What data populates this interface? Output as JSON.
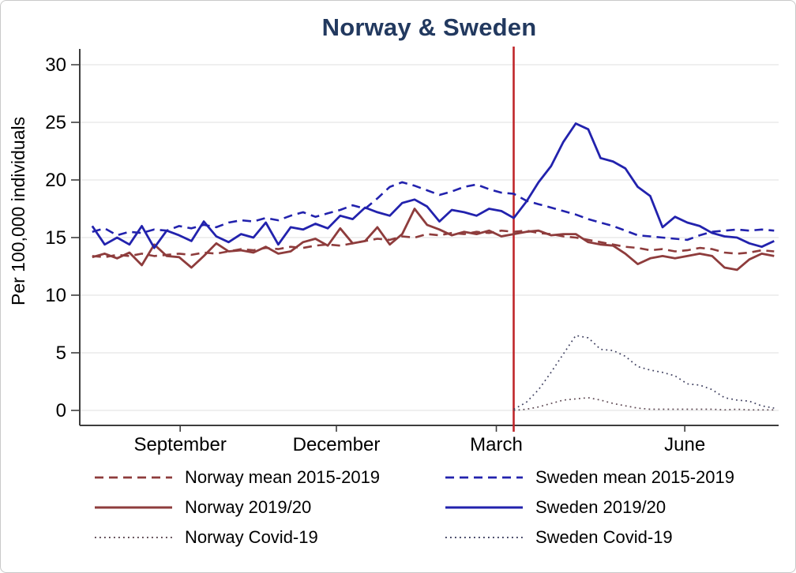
{
  "chart_data": {
    "type": "line",
    "title": "Norway & Sweden",
    "ylabel": "Per 100,000 individuals",
    "xlabel": "",
    "ylim": [
      0,
      30
    ],
    "yticks": [
      0,
      5,
      10,
      15,
      20,
      25,
      30
    ],
    "grid": "horizontal",
    "legend_position": "below",
    "x_unit": "weeks (July 2019 - July 2020)",
    "x_weeks_total": 56,
    "xticks": [
      {
        "week": 7.6,
        "label": "September"
      },
      {
        "week": 20.2,
        "label": "December"
      },
      {
        "week": 33.1,
        "label": "March"
      },
      {
        "week": 48.3,
        "label": "June"
      }
    ],
    "event_line": {
      "week": 34.5,
      "color": "#c0262a"
    },
    "colors": {
      "norway": "#8e3c3c",
      "sweden": "#2222ad",
      "norway_covid": "#5c4751",
      "sweden_covid": "#3f4060",
      "gridline": "#eaeaea",
      "axis": "#3d3d3d"
    },
    "series": [
      {
        "name": "Norway mean 2015-2019",
        "color": "#8e3c3c",
        "style": "dashed",
        "start_week": 0,
        "values": [
          13.4,
          13.3,
          13.5,
          13.4,
          13.6,
          13.4,
          13.5,
          13.6,
          13.5,
          13.7,
          13.6,
          13.8,
          14.0,
          13.9,
          14.1,
          14.0,
          14.2,
          14.1,
          14.3,
          14.4,
          14.3,
          14.5,
          14.7,
          14.9,
          14.8,
          15.1,
          15.0,
          15.3,
          15.2,
          15.4,
          15.3,
          15.5,
          15.4,
          15.6,
          15.5,
          15.6,
          15.4,
          15.3,
          15.1,
          15.0,
          14.8,
          14.6,
          14.4,
          14.2,
          14.1,
          13.9,
          14.0,
          13.8,
          13.9,
          14.1,
          14.0,
          13.7,
          13.6,
          13.7,
          13.9,
          13.8
        ]
      },
      {
        "name": "Sweden mean 2015-2019",
        "color": "#2222ad",
        "style": "dashed",
        "start_week": 0,
        "values": [
          15.5,
          15.8,
          15.2,
          15.5,
          15.4,
          15.7,
          15.6,
          16.0,
          15.8,
          16.1,
          15.9,
          16.3,
          16.5,
          16.4,
          16.7,
          16.5,
          16.9,
          17.2,
          16.8,
          17.1,
          17.4,
          17.8,
          17.5,
          18.4,
          19.4,
          19.8,
          19.5,
          19.1,
          18.7,
          19.0,
          19.4,
          19.6,
          19.2,
          18.9,
          18.8,
          18.2,
          17.9,
          17.6,
          17.3,
          17.0,
          16.6,
          16.3,
          16.0,
          15.6,
          15.2,
          15.1,
          15.0,
          14.9,
          14.8,
          15.2,
          15.5,
          15.6,
          15.7,
          15.6,
          15.7,
          15.6
        ]
      },
      {
        "name": "Norway 2019/20",
        "color": "#8e3c3c",
        "style": "solid",
        "start_week": 0,
        "values": [
          13.3,
          13.6,
          13.2,
          13.7,
          12.6,
          14.4,
          13.4,
          13.3,
          12.4,
          13.4,
          14.5,
          13.8,
          13.9,
          13.7,
          14.2,
          13.6,
          13.8,
          14.6,
          14.9,
          14.3,
          15.8,
          14.5,
          14.7,
          15.9,
          14.4,
          15.3,
          17.5,
          16.1,
          15.7,
          15.2,
          15.5,
          15.3,
          15.6,
          15.1,
          15.3,
          15.5,
          15.6,
          15.2,
          15.3,
          15.3,
          14.6,
          14.4,
          14.3,
          13.6,
          12.7,
          13.2,
          13.4,
          13.2,
          13.4,
          13.6,
          13.4,
          12.4,
          12.2,
          13.1,
          13.6,
          13.4
        ]
      },
      {
        "name": "Sweden 2019/20",
        "color": "#2222ad",
        "style": "solid",
        "start_week": 0,
        "values": [
          16.0,
          14.4,
          15.0,
          14.4,
          16.0,
          14.1,
          15.6,
          15.2,
          14.7,
          16.4,
          15.1,
          14.6,
          15.3,
          15.0,
          16.3,
          14.4,
          15.9,
          15.7,
          16.2,
          15.8,
          16.9,
          16.6,
          17.6,
          17.2,
          16.9,
          18.0,
          18.3,
          17.7,
          16.4,
          17.4,
          17.2,
          16.9,
          17.5,
          17.3,
          16.7,
          18.1,
          19.8,
          21.2,
          23.3,
          24.9,
          24.4,
          21.9,
          21.6,
          21.0,
          19.4,
          18.6,
          15.9,
          16.8,
          16.3,
          16.0,
          15.4,
          15.1,
          15.0,
          14.5,
          14.2,
          14.7
        ]
      },
      {
        "name": "Norway Covid-19",
        "color": "#5c4751",
        "style": "dotted",
        "start_week": 34,
        "values": [
          0.0,
          0.1,
          0.3,
          0.6,
          0.9,
          1.0,
          1.1,
          0.9,
          0.6,
          0.4,
          0.2,
          0.1,
          0.1,
          0.1,
          0.1,
          0.1,
          0.1,
          0.05,
          0.1,
          0.05,
          0.05,
          0.05
        ]
      },
      {
        "name": "Sweden Covid-19",
        "color": "#3f4060",
        "style": "dotted",
        "start_week": 34,
        "values": [
          0.1,
          0.7,
          1.8,
          3.3,
          4.9,
          6.5,
          6.3,
          5.3,
          5.2,
          4.7,
          3.8,
          3.5,
          3.3,
          3.0,
          2.3,
          2.2,
          1.8,
          1.1,
          0.9,
          0.8,
          0.4,
          0.2
        ]
      }
    ]
  },
  "legend": {
    "items": [
      {
        "series": 0,
        "label": "Norway mean 2015-2019"
      },
      {
        "series": 1,
        "label": "Sweden mean 2015-2019"
      },
      {
        "series": 2,
        "label": "Norway 2019/20"
      },
      {
        "series": 3,
        "label": "Sweden 2019/20"
      },
      {
        "series": 4,
        "label": "Norway Covid-19"
      },
      {
        "series": 5,
        "label": "Sweden Covid-19"
      }
    ]
  }
}
